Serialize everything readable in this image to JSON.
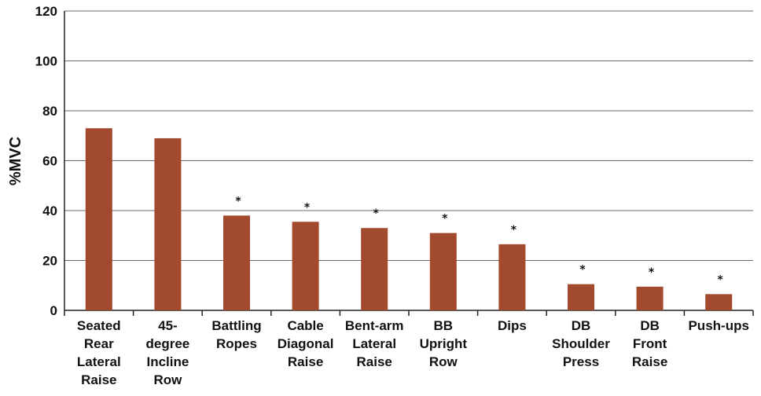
{
  "chart_data": {
    "type": "bar",
    "title": "",
    "xlabel": "",
    "ylabel": "%MVC",
    "ylim": [
      0,
      120
    ],
    "yticks": [
      0,
      20,
      40,
      60,
      80,
      100,
      120
    ],
    "grid": true,
    "bar_color": "#a14a2e",
    "categories": [
      [
        "Seated",
        "Rear",
        "Lateral",
        "Raise"
      ],
      [
        "45-",
        "degree",
        "Incline",
        "Row"
      ],
      [
        "Battling",
        "Ropes"
      ],
      [
        "Cable",
        "Diagonal",
        "Raise"
      ],
      [
        "Bent-arm",
        "Lateral",
        "Raise"
      ],
      [
        "BB",
        "Upright",
        "Row"
      ],
      [
        "Dips"
      ],
      [
        "DB",
        "Shoulder",
        "Press"
      ],
      [
        "DB",
        "Front",
        "Raise"
      ],
      [
        "Push-ups"
      ]
    ],
    "values": [
      73,
      69,
      38,
      35.5,
      33,
      31,
      26.5,
      10.5,
      9.5,
      6.5
    ],
    "annotations": [
      "",
      "",
      "*",
      "*",
      "*",
      "*",
      "*",
      "*",
      "*",
      "*"
    ]
  }
}
